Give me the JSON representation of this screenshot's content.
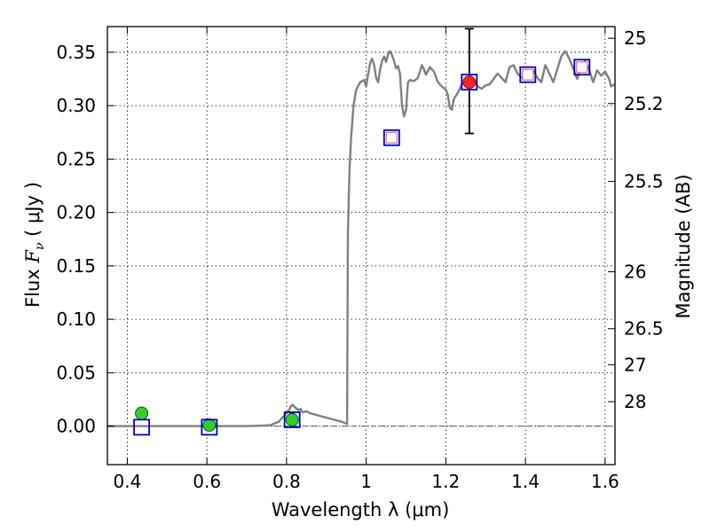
{
  "chart_data": {
    "type": "scatter",
    "xlabel": "Wavelength  λ (μm)",
    "ylabel_prefix": "Flux  ",
    "ylabel_symbol": "F",
    "ylabel_subscript": "ν",
    "ylabel_suffix": "  ( μJy )",
    "y2label": "Magnitude (AB)",
    "xlim": [
      0.35,
      1.625
    ],
    "ylim": [
      -0.036,
      0.374
    ],
    "grid": true,
    "x_ticks": [
      0.4,
      0.6,
      0.8,
      1.0,
      1.2,
      1.4,
      1.6
    ],
    "x_tick_labels": [
      "0.4",
      "0.6",
      "0.8",
      "1",
      "1.2",
      "1.4",
      "1.6"
    ],
    "y_ticks": [
      0.0,
      0.05,
      0.1,
      0.15,
      0.2,
      0.25,
      0.3,
      0.35
    ],
    "y_tick_labels": [
      "0.00",
      "0.05",
      "0.10",
      "0.15",
      "0.20",
      "0.25",
      "0.30",
      "0.35"
    ],
    "mag_ticks": [
      25,
      25.2,
      25.5,
      26,
      26.5,
      27,
      28
    ],
    "mag_tick_labels": [
      "25",
      "25.2",
      "25.5",
      "26",
      "26.5",
      "27",
      "28"
    ],
    "zero_line_y": 0.0,
    "model_spectrum": {
      "color": "#808080",
      "points": [
        [
          0.35,
          0.0
        ],
        [
          0.4,
          0.0
        ],
        [
          0.5,
          0.0
        ],
        [
          0.6,
          0.0
        ],
        [
          0.7,
          0.0
        ],
        [
          0.74,
          0.0005
        ],
        [
          0.76,
          0.001
        ],
        [
          0.78,
          0.004
        ],
        [
          0.79,
          0.008
        ],
        [
          0.8,
          0.012
        ],
        [
          0.805,
          0.014
        ],
        [
          0.81,
          0.018
        ],
        [
          0.815,
          0.02
        ],
        [
          0.82,
          0.018
        ],
        [
          0.83,
          0.015
        ],
        [
          0.835,
          0.016
        ],
        [
          0.84,
          0.013
        ],
        [
          0.85,
          0.014
        ],
        [
          0.86,
          0.012
        ],
        [
          0.87,
          0.011
        ],
        [
          0.88,
          0.01
        ],
        [
          0.9,
          0.008
        ],
        [
          0.92,
          0.006
        ],
        [
          0.94,
          0.004
        ],
        [
          0.952,
          0.002
        ],
        [
          0.954,
          0.18
        ],
        [
          0.958,
          0.24
        ],
        [
          0.962,
          0.27
        ],
        [
          0.968,
          0.3
        ],
        [
          0.975,
          0.315
        ],
        [
          0.985,
          0.322
        ],
        [
          0.995,
          0.324
        ],
        [
          1.0,
          0.318
        ],
        [
          1.005,
          0.33
        ],
        [
          1.01,
          0.34
        ],
        [
          1.015,
          0.344
        ],
        [
          1.02,
          0.338
        ],
        [
          1.025,
          0.326
        ],
        [
          1.03,
          0.322
        ],
        [
          1.035,
          0.334
        ],
        [
          1.04,
          0.342
        ],
        [
          1.045,
          0.346
        ],
        [
          1.05,
          0.341
        ],
        [
          1.055,
          0.348
        ],
        [
          1.06,
          0.351
        ],
        [
          1.065,
          0.347
        ],
        [
          1.07,
          0.342
        ],
        [
          1.075,
          0.335
        ],
        [
          1.08,
          0.337
        ],
        [
          1.085,
          0.33
        ],
        [
          1.09,
          0.3
        ],
        [
          1.095,
          0.29
        ],
        [
          1.1,
          0.296
        ],
        [
          1.105,
          0.322
        ],
        [
          1.11,
          0.324
        ],
        [
          1.12,
          0.323
        ],
        [
          1.13,
          0.326
        ],
        [
          1.14,
          0.338
        ],
        [
          1.145,
          0.334
        ],
        [
          1.15,
          0.329
        ],
        [
          1.16,
          0.336
        ],
        [
          1.17,
          0.332
        ],
        [
          1.18,
          0.322
        ],
        [
          1.19,
          0.318
        ],
        [
          1.2,
          0.315
        ],
        [
          1.205,
          0.31
        ],
        [
          1.21,
          0.298
        ],
        [
          1.215,
          0.296
        ],
        [
          1.22,
          0.306
        ],
        [
          1.23,
          0.312
        ],
        [
          1.24,
          0.32
        ],
        [
          1.25,
          0.322
        ],
        [
          1.26,
          0.323
        ],
        [
          1.27,
          0.324
        ],
        [
          1.28,
          0.318
        ],
        [
          1.29,
          0.316
        ],
        [
          1.3,
          0.319
        ],
        [
          1.31,
          0.32
        ],
        [
          1.32,
          0.325
        ],
        [
          1.33,
          0.33
        ],
        [
          1.34,
          0.326
        ],
        [
          1.35,
          0.322
        ],
        [
          1.36,
          0.336
        ],
        [
          1.37,
          0.338
        ],
        [
          1.38,
          0.33
        ],
        [
          1.39,
          0.326
        ],
        [
          1.4,
          0.329
        ],
        [
          1.41,
          0.33
        ],
        [
          1.42,
          0.333
        ],
        [
          1.43,
          0.326
        ],
        [
          1.44,
          0.322
        ],
        [
          1.45,
          0.338
        ],
        [
          1.46,
          0.33
        ],
        [
          1.47,
          0.322
        ],
        [
          1.48,
          0.334
        ],
        [
          1.49,
          0.346
        ],
        [
          1.5,
          0.351
        ],
        [
          1.51,
          0.344
        ],
        [
          1.52,
          0.335
        ],
        [
          1.53,
          0.325
        ],
        [
          1.54,
          0.337
        ],
        [
          1.55,
          0.342
        ],
        [
          1.56,
          0.334
        ],
        [
          1.57,
          0.322
        ],
        [
          1.58,
          0.333
        ],
        [
          1.59,
          0.328
        ],
        [
          1.6,
          0.332
        ],
        [
          1.61,
          0.325
        ],
        [
          1.615,
          0.318
        ],
        [
          1.625,
          0.32
        ]
      ]
    },
    "model_photometry": {
      "color": "#0000cc",
      "marker": "open-square",
      "points": [
        {
          "x": 0.436,
          "y": -0.001
        },
        {
          "x": 0.606,
          "y": -0.001
        },
        {
          "x": 0.814,
          "y": 0.006
        },
        {
          "x": 1.064,
          "y": 0.27
        },
        {
          "x": 1.259,
          "y": 0.322
        },
        {
          "x": 1.406,
          "y": 0.329
        },
        {
          "x": 1.542,
          "y": 0.336
        }
      ]
    },
    "observed_detections": {
      "color": "#33cc33",
      "edge_color": "#006600",
      "marker": "filled-circle",
      "points": [
        {
          "x": 0.436,
          "y": 0.012,
          "yerr": 0.005
        },
        {
          "x": 0.606,
          "y": 0.001,
          "yerr": 0.004
        },
        {
          "x": 0.814,
          "y": 0.006,
          "yerr": 0.006
        }
      ]
    },
    "observed_red": {
      "color": "#ff2222",
      "marker": "filled-circle",
      "points": [
        {
          "x": 1.259,
          "y": 0.322,
          "ylow": 0.274,
          "yhigh": 0.372
        }
      ]
    },
    "upper_limits_or_faint": {
      "color": "#e07a7a",
      "marker": "small-open-square",
      "points": [
        {
          "x": 1.064,
          "y": 0.27
        },
        {
          "x": 1.406,
          "y": 0.329
        },
        {
          "x": 1.542,
          "y": 0.336
        }
      ]
    }
  }
}
